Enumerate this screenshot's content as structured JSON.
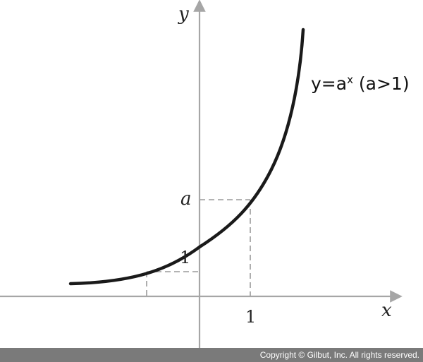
{
  "graph": {
    "x_axis_label": "x",
    "y_axis_label": "y",
    "tick_one_x": "1",
    "tick_one_y": "1",
    "tick_a": "a",
    "curve_label": {
      "lhs": "y=a",
      "exponent": "x",
      "condition": " (a>1)"
    },
    "colors": {
      "axis": "#a6a6a6",
      "curve": "#1a1a1a",
      "guide": "#9a9a9a"
    }
  },
  "footer": {
    "copyright": "Copyright © Gilbut, Inc. All rights reserved.",
    "background": "#7a7a7a"
  }
}
